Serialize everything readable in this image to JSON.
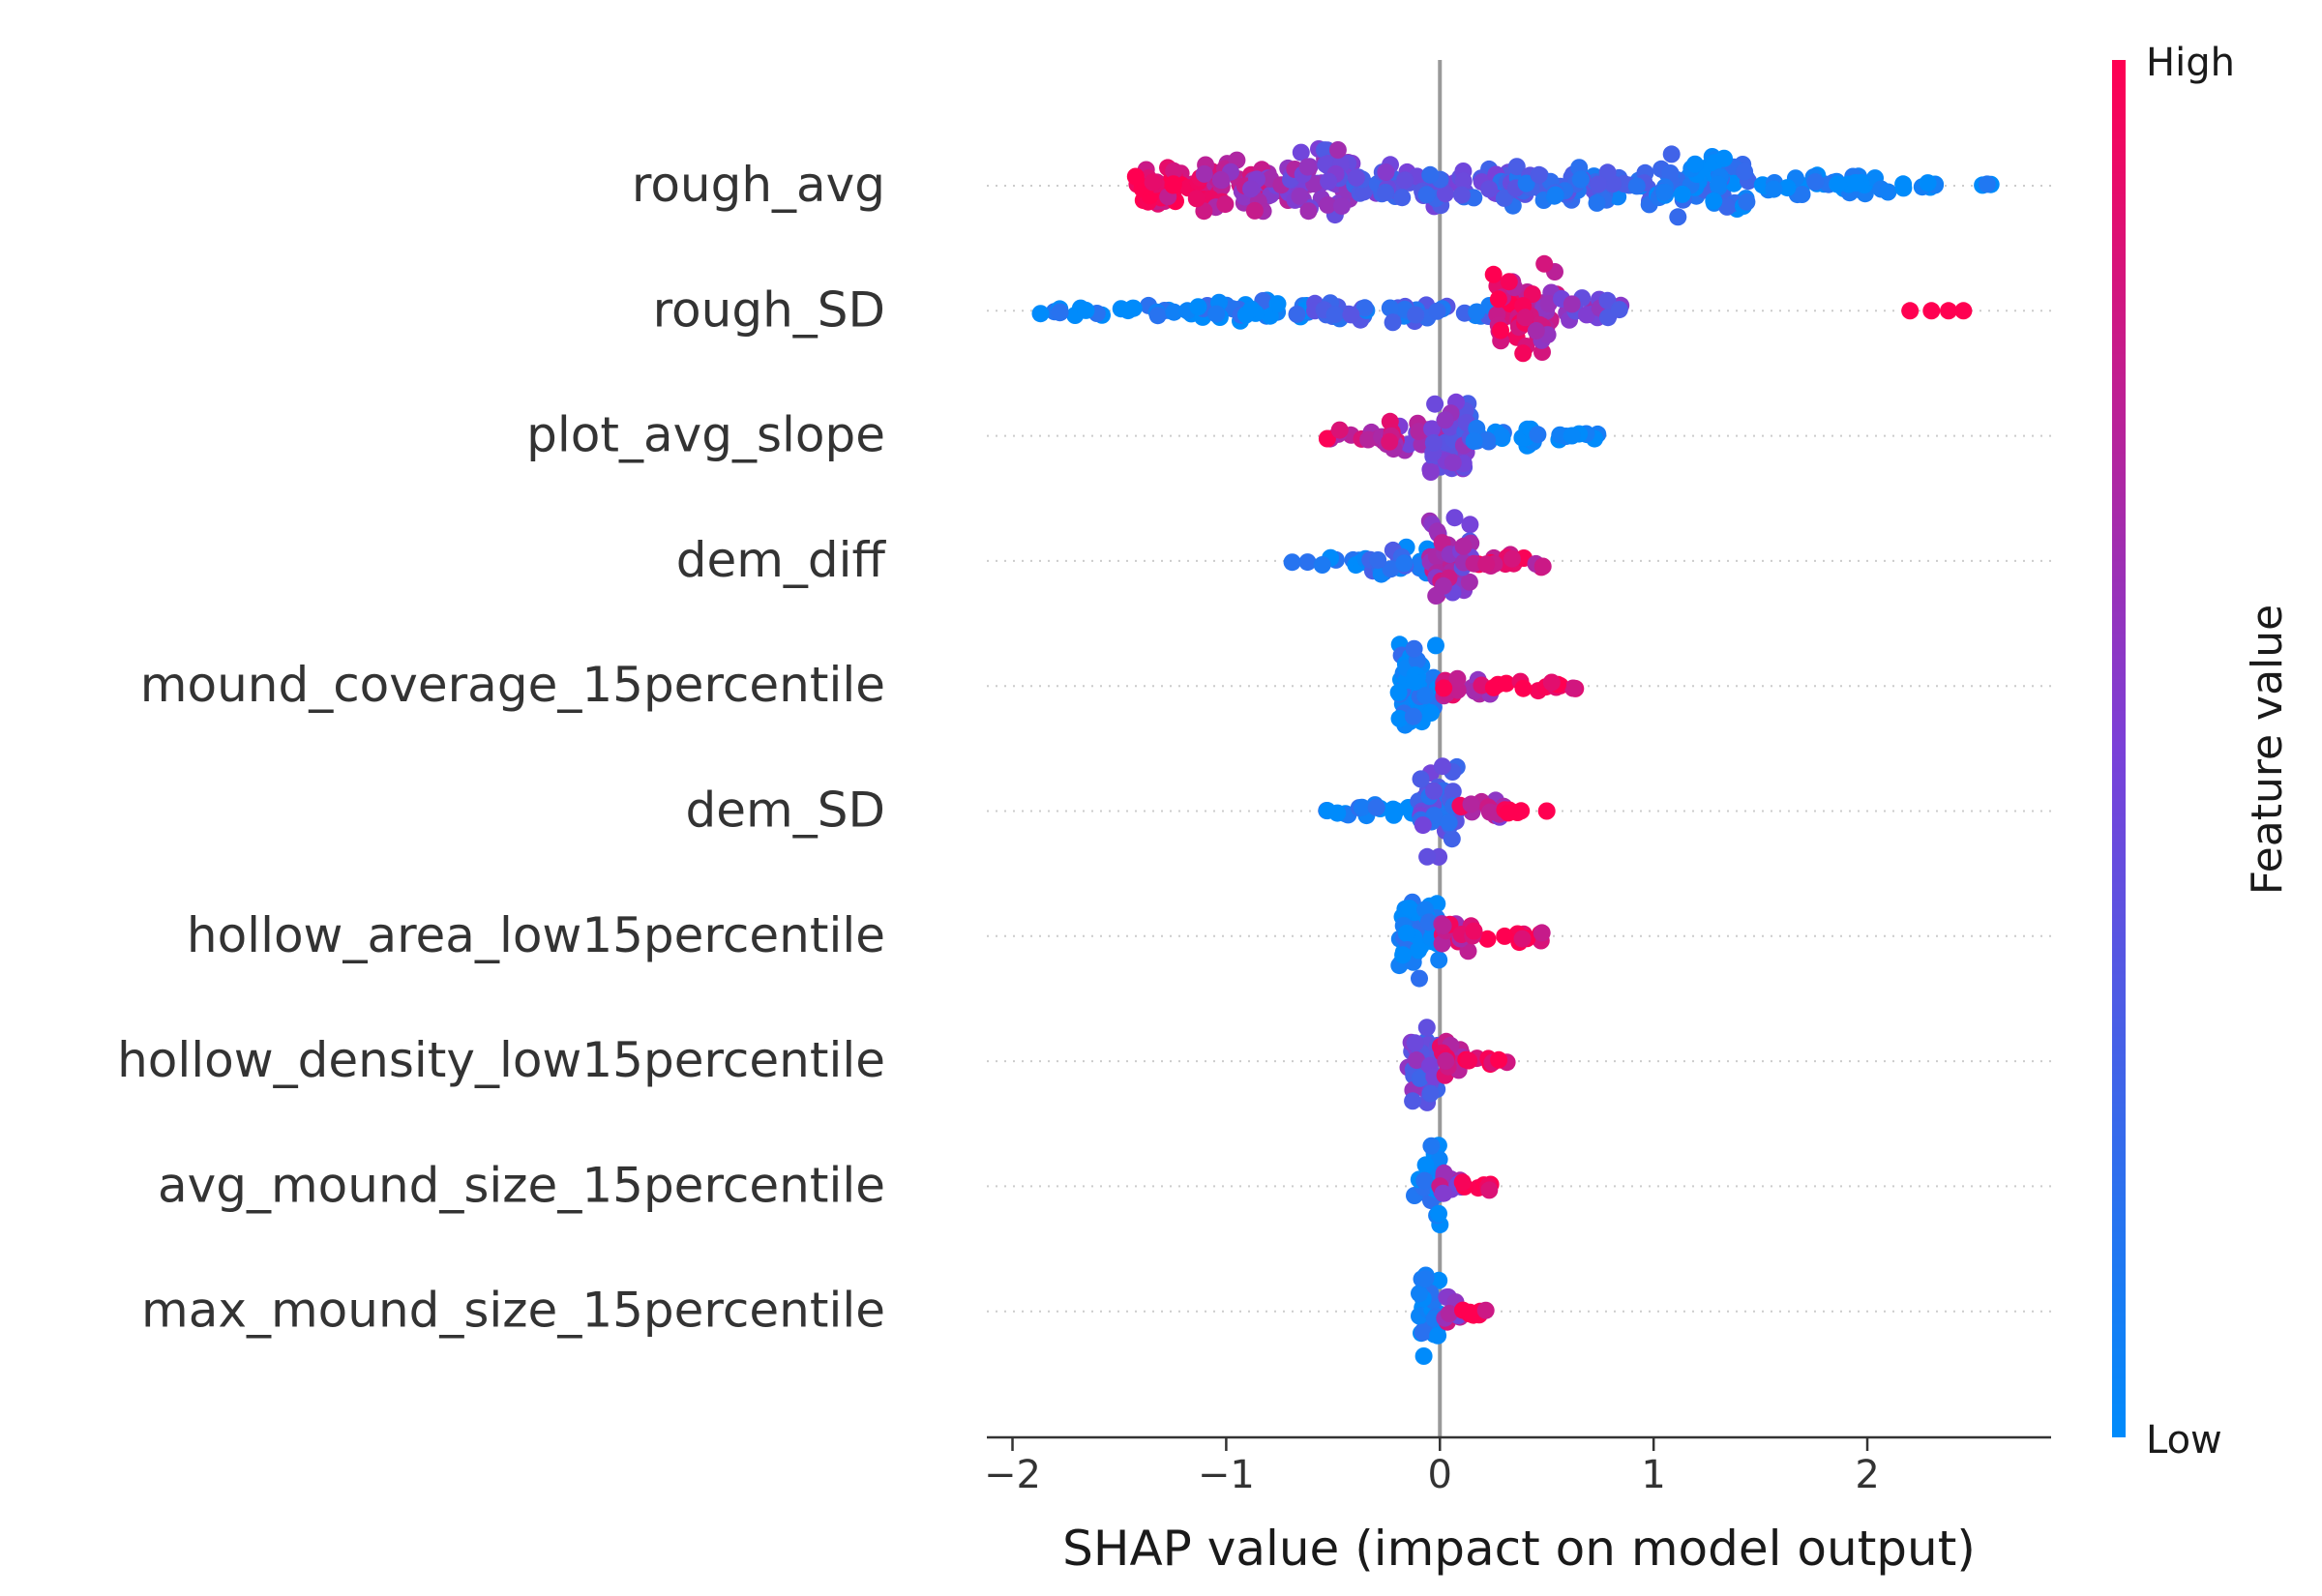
{
  "chart_data": {
    "type": "scatter",
    "subtype": "shap-beeswarm",
    "xlabel": "SHAP value (impact on model output)",
    "xlim": [
      -2.12,
      2.86
    ],
    "xticks": [
      -2,
      -1,
      0,
      1,
      2
    ],
    "xtick_labels": [
      "−2",
      "−1",
      "0",
      "1",
      "2"
    ],
    "features": [
      {
        "name": "rough_avg",
        "range": [
          -1.45,
          2.6
        ],
        "segments": [
          [
            -1.45,
            -1.15,
            0.55,
            1.0,
            0.9
          ],
          [
            -1.15,
            -0.7,
            0.6,
            0.8,
            0.62
          ],
          [
            -0.7,
            -0.4,
            0.8,
            0.55,
            0.45
          ],
          [
            -0.4,
            0.35,
            0.45,
            0.4,
            0.34
          ],
          [
            0.35,
            1.0,
            0.45,
            0.25,
            0.2
          ],
          [
            1.0,
            1.45,
            0.7,
            0.15,
            0.08
          ],
          [
            1.45,
            2.1,
            0.25,
            0.05,
            0.0
          ],
          [
            2.1,
            2.6,
            0.08,
            0.0,
            0.0
          ]
        ],
        "outliers": []
      },
      {
        "name": "rough_SD",
        "range": [
          -1.9,
          2.45
        ],
        "segments": [
          [
            -1.9,
            -1.2,
            0.12,
            0.02,
            0.0
          ],
          [
            -1.2,
            -0.6,
            0.25,
            0.1,
            0.05
          ],
          [
            -0.6,
            0.25,
            0.25,
            0.25,
            0.2
          ],
          [
            0.25,
            0.55,
            1.0,
            0.9,
            0.7
          ],
          [
            0.55,
            0.85,
            0.3,
            0.6,
            0.45
          ]
        ],
        "outliers": [
          2.2,
          2.3,
          2.38,
          2.45
        ]
      },
      {
        "name": "plot_avg_slope",
        "range": [
          -0.55,
          0.8
        ],
        "segments": [
          [
            -0.55,
            -0.25,
            0.15,
            0.9,
            0.65
          ],
          [
            -0.25,
            -0.05,
            0.4,
            0.75,
            0.5
          ],
          [
            -0.05,
            0.15,
            1.0,
            0.55,
            0.4
          ],
          [
            0.15,
            0.45,
            0.25,
            0.05,
            0.0
          ],
          [
            0.45,
            0.8,
            0.1,
            0.0,
            0.0
          ]
        ],
        "outliers": []
      },
      {
        "name": "dem_diff",
        "range": [
          -0.7,
          0.5
        ],
        "segments": [
          [
            -0.7,
            -0.35,
            0.1,
            0.05,
            0.0
          ],
          [
            -0.35,
            -0.05,
            0.35,
            0.2,
            0.1
          ],
          [
            -0.05,
            0.15,
            1.0,
            0.75,
            0.5
          ],
          [
            0.15,
            0.5,
            0.2,
            0.9,
            0.8
          ]
        ],
        "outliers": []
      },
      {
        "name": "mound_coverage_15percentile",
        "range": [
          -0.2,
          0.65
        ],
        "segments": [
          [
            -0.2,
            0.0,
            1.0,
            0.05,
            0.0
          ],
          [
            0.0,
            0.25,
            0.25,
            0.85,
            0.7
          ],
          [
            0.25,
            0.65,
            0.12,
            1.0,
            0.95
          ]
        ],
        "outliers": []
      },
      {
        "name": "dem_SD",
        "range": [
          -0.57,
          0.5
        ],
        "segments": [
          [
            -0.57,
            -0.1,
            0.15,
            0.05,
            0.0
          ],
          [
            -0.1,
            0.08,
            1.0,
            0.35,
            0.2
          ],
          [
            0.08,
            0.3,
            0.3,
            0.85,
            0.65
          ],
          [
            0.3,
            0.45,
            0.08,
            1.0,
            0.9
          ]
        ],
        "outliers": [
          0.5
        ]
      },
      {
        "name": "hollow_area_low15percentile",
        "range": [
          -0.2,
          0.5
        ],
        "segments": [
          [
            -0.2,
            0.0,
            1.0,
            0.05,
            0.0
          ],
          [
            0.0,
            0.15,
            0.45,
            0.8,
            0.75
          ],
          [
            0.15,
            0.5,
            0.15,
            1.0,
            0.95
          ]
        ],
        "outliers": []
      },
      {
        "name": "hollow_density_low15percentile",
        "range": [
          -0.15,
          0.35
        ],
        "segments": [
          [
            -0.15,
            0.0,
            1.0,
            0.5,
            0.3
          ],
          [
            0.0,
            0.12,
            0.45,
            0.9,
            0.8
          ],
          [
            0.12,
            0.35,
            0.1,
            1.0,
            0.95
          ]
        ],
        "outliers": []
      },
      {
        "name": "avg_mound_size_15percentile",
        "range": [
          -0.12,
          0.28
        ],
        "segments": [
          [
            -0.12,
            0.0,
            1.0,
            0.05,
            0.0
          ],
          [
            0.0,
            0.1,
            0.5,
            0.7,
            0.6
          ],
          [
            0.1,
            0.28,
            0.12,
            1.0,
            0.95
          ]
        ],
        "outliers": []
      },
      {
        "name": "max_mound_size_15percentile",
        "range": [
          -0.1,
          0.23
        ],
        "segments": [
          [
            -0.1,
            0.0,
            1.0,
            0.05,
            0.0
          ],
          [
            0.0,
            0.1,
            0.5,
            0.7,
            0.6
          ],
          [
            0.1,
            0.23,
            0.15,
            1.0,
            0.95
          ]
        ],
        "outliers": []
      }
    ],
    "colorbar": {
      "label": "Feature value",
      "high_label": "High",
      "low_label": "Low",
      "low_color": "#008bfb",
      "mid_color": "#7a40d8",
      "high_color": "#ff0051"
    },
    "colors": {
      "zero_line": "#999999",
      "axis": "#333333",
      "text": "#333333",
      "guide_dots": "#cccccc"
    }
  }
}
